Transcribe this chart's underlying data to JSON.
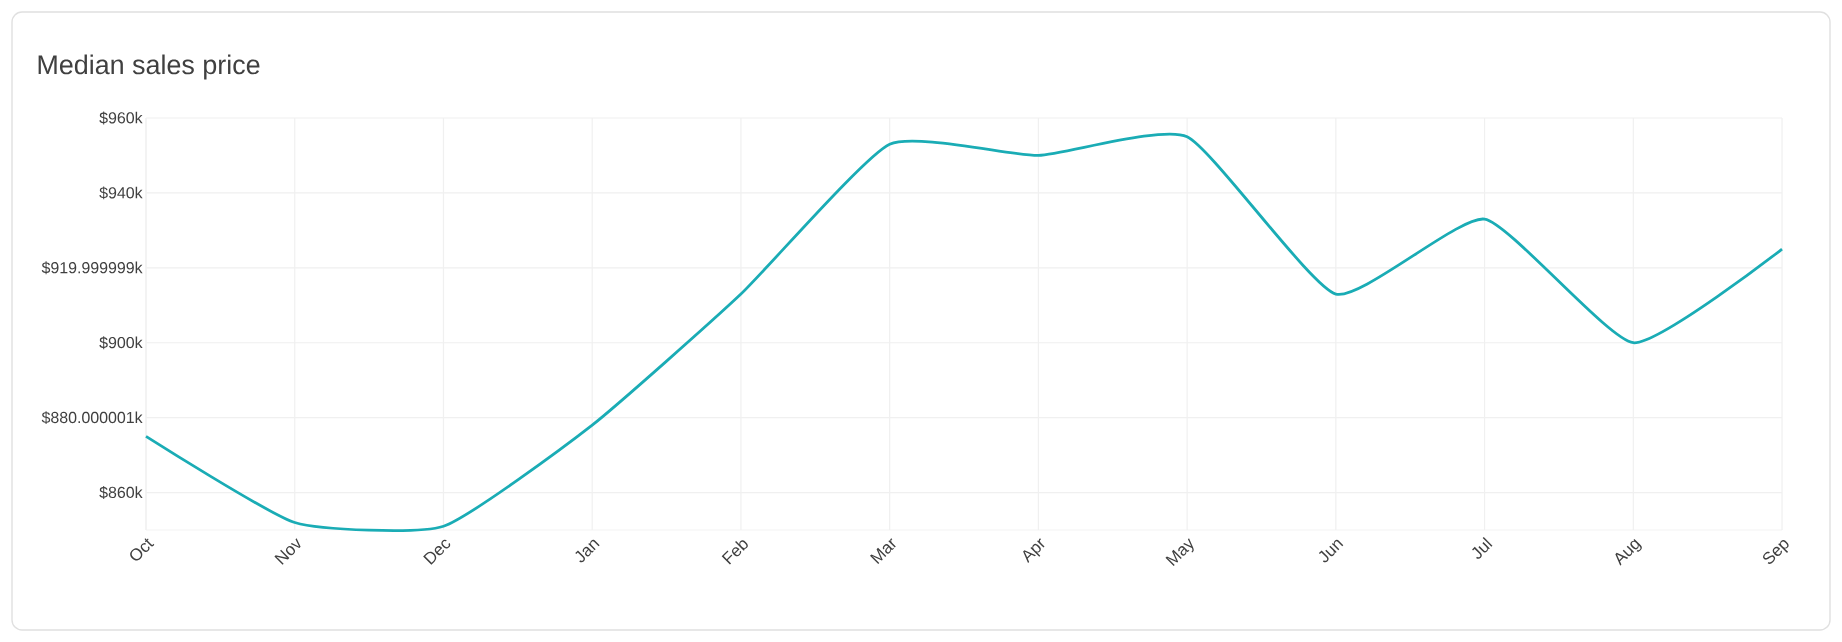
{
  "chart_data": {
    "type": "line",
    "title": "Median sales price",
    "categories": [
      "Oct",
      "Nov",
      "Dec",
      "Jan",
      "Feb",
      "Mar",
      "Apr",
      "May",
      "Jun",
      "Jul",
      "Aug",
      "Sep"
    ],
    "series": [
      {
        "color": "#1aacb5",
        "values": [
          875,
          852,
          851,
          878,
          913,
          953,
          950,
          955,
          913,
          933,
          900,
          925
        ]
      }
    ],
    "ylim": [
      850,
      960
    ],
    "yticks": [
      {
        "value": 860,
        "label": "$860k"
      },
      {
        "value": 880.000001,
        "label": "$880.000001k"
      },
      {
        "value": 900,
        "label": "$900k"
      },
      {
        "value": 919.999999,
        "label": "$919.999999k"
      },
      {
        "value": 940,
        "label": "$940k"
      },
      {
        "value": 960,
        "label": "$960k"
      }
    ],
    "grid": true
  }
}
